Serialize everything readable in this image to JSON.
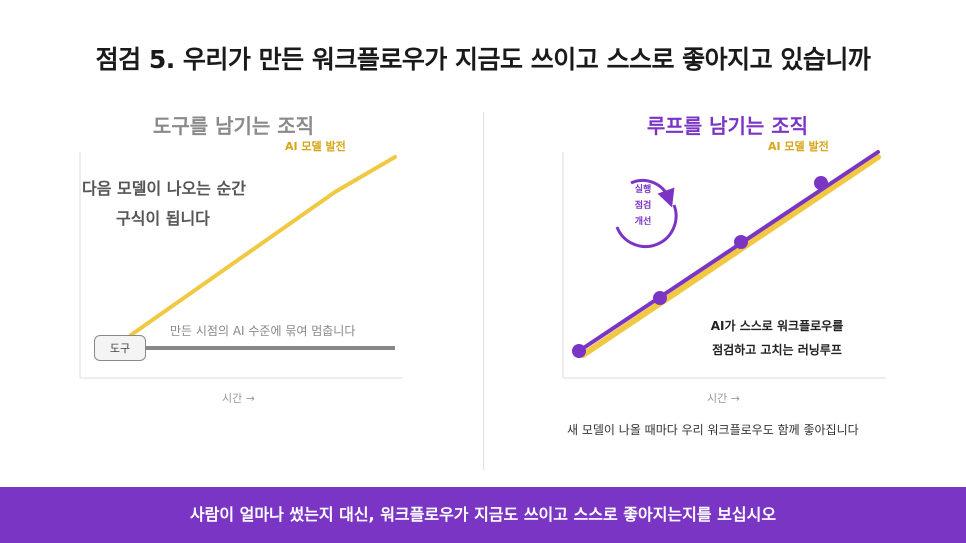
{
  "title": "점검 5. 우리가 만든 워크플로우가 지금도 쓰이고 스스로 좋아지고 있습니까",
  "left": {
    "title": "도구를 남기는 조직",
    "ai_label": "AI 모델 발전",
    "quote_line1": "다음 모델이 나오는 순간",
    "quote_line2": "구식이 됩니다",
    "frozen_label": "만든 시점의 AI 수준에 묶여 멈춥니다",
    "tool_label": "도구",
    "x_axis": "시간 →"
  },
  "right": {
    "title": "루프를 남기는 조직",
    "ai_label": "AI 모델 발전",
    "cycle": [
      "실행",
      "점검",
      "개선"
    ],
    "loop_line1": "AI가 스스로 워크플로우를",
    "loop_line2": "점검하고 고치는 러닝루프",
    "x_axis": "시간 →",
    "caption": "새 모델이 나올 때마다 우리 워크플로우도 함께 좋아집니다"
  },
  "banner": "사람이 얼마나 썼는지 대신, 워크플로우가 지금도 쓰이고 스스로 좋아지는지를 보십시오",
  "colors": {
    "accent": "#7b35c4",
    "ai_line": "#f0c841",
    "tool_line": "#888888"
  }
}
